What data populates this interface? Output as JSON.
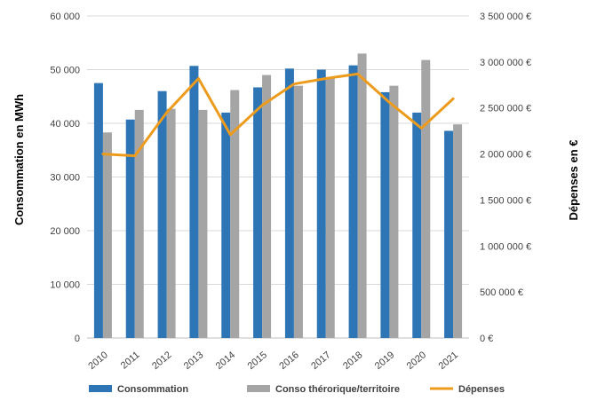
{
  "chart_data": {
    "type": "bar",
    "categories": [
      "2010",
      "2011",
      "2012",
      "2013",
      "2014",
      "2015",
      "2016",
      "2017",
      "2018",
      "2019",
      "2020",
      "2021"
    ],
    "series": [
      {
        "name": "Consommation",
        "kind": "bar",
        "axis": "left",
        "color": "#2E75B6",
        "values": [
          47500,
          40700,
          46000,
          50700,
          42000,
          46700,
          50200,
          50000,
          50800,
          45800,
          42000,
          38600
        ]
      },
      {
        "name": "Conso thérorique/territoire",
        "kind": "bar",
        "axis": "left",
        "color": "#A5A5A5",
        "values": [
          38300,
          42500,
          42700,
          42500,
          46200,
          49000,
          47000,
          48500,
          53000,
          47000,
          51800,
          39800
        ]
      },
      {
        "name": "Dépenses",
        "kind": "line",
        "axis": "right",
        "color": "#ED9B1C",
        "values": [
          2000000,
          1980000,
          2450000,
          2820000,
          2210000,
          2530000,
          2760000,
          2820000,
          2870000,
          2560000,
          2280000,
          2600000
        ]
      }
    ],
    "ylabel": "Consommation en MWh",
    "y2label": "Dépenses en €",
    "ylim": [
      0,
      60000
    ],
    "y2lim": [
      0,
      3500000
    ],
    "y_ticks": [
      "0",
      "10 000",
      "20 000",
      "30 000",
      "40 000",
      "50 000",
      "60 000"
    ],
    "y2_ticks": [
      "0 €",
      "500 000 €",
      "1 000 000 €",
      "1 500 000 €",
      "2 000 000 €",
      "2 500 000 €",
      "3 000 000 €",
      "3 500 000 €"
    ],
    "grid": true,
    "legend_position": "bottom"
  }
}
